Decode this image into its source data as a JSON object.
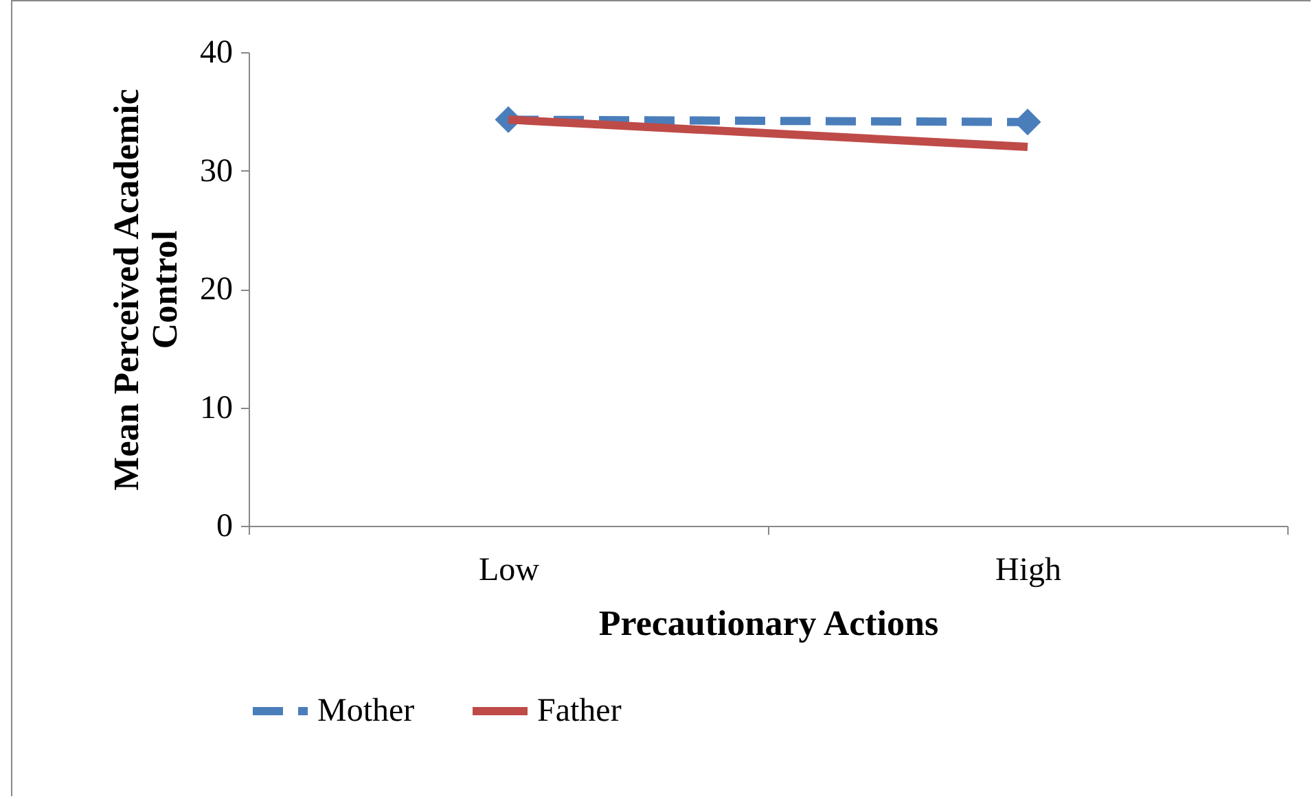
{
  "chart_data": {
    "type": "line",
    "xlabel": "Precautionary Actions",
    "ylabel": "Mean Perceived Academic Control",
    "categories": [
      "Low",
      "High"
    ],
    "series": [
      {
        "name": "Mother",
        "color": "#4a7ebb",
        "values": [
          34.3,
          34.1
        ],
        "line_style": "dashed",
        "marker": "diamond"
      },
      {
        "name": "Father",
        "color": "#be4b48",
        "values": [
          34.3,
          32.0
        ],
        "line_style": "solid",
        "marker": "none"
      }
    ],
    "ylim": [
      0,
      40
    ],
    "yticks": [
      0,
      10,
      20,
      30,
      40
    ],
    "grid": false,
    "legend": "bottom"
  }
}
